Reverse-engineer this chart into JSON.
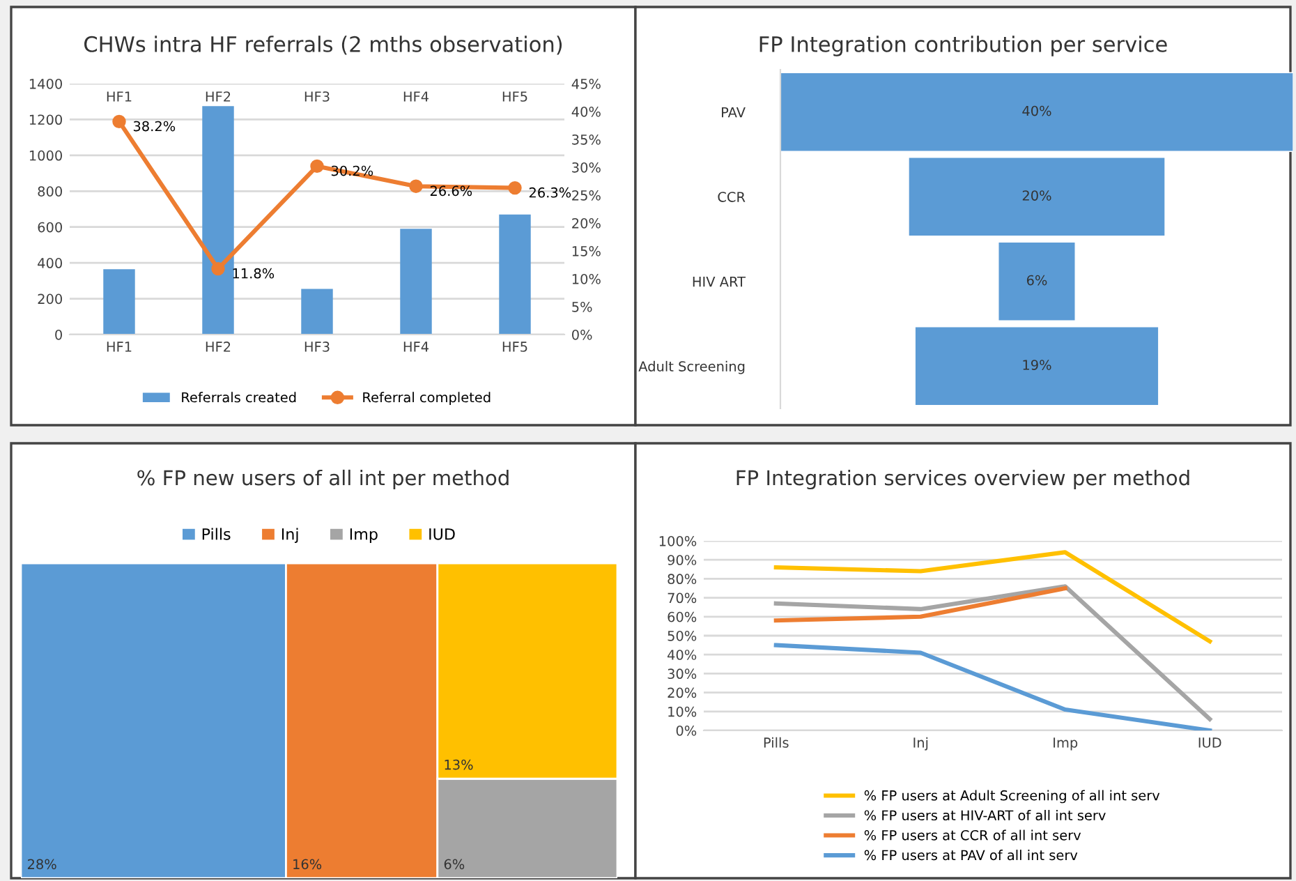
{
  "chart_data": [
    {
      "type": "bar",
      "title": "CHWs intra HF referrals (2 mths observation)",
      "categories": [
        "HF1",
        "HF2",
        "HF3",
        "HF4",
        "HF5"
      ],
      "series": [
        {
          "name": "Referrals created",
          "type": "bar",
          "color": "#5b9bd5",
          "values": [
            365,
            1275,
            255,
            590,
            670
          ]
        },
        {
          "name": "Referral completed",
          "type": "line",
          "axis": "y2",
          "color": "#ed7d31",
          "marker": "circle",
          "values": [
            38.2,
            11.8,
            30.2,
            26.6,
            26.3
          ],
          "value_labels": [
            "38.2%",
            "11.8%",
            "30.2%",
            "26.6%",
            "26.3%"
          ]
        }
      ],
      "annotations": [
        "HF1",
        "HF2",
        "HF3",
        "HF4",
        "HF5"
      ],
      "ylim": [
        0,
        1400
      ],
      "yticks": [
        0,
        200,
        400,
        600,
        800,
        1000,
        1200,
        1400
      ],
      "y2lim": [
        0,
        45
      ],
      "y2ticks": [
        {
          "value": 0,
          "label": "0%"
        },
        {
          "value": 5,
          "label": "5%"
        },
        {
          "value": 10,
          "label": "10%"
        },
        {
          "value": 15,
          "label": "15%"
        },
        {
          "value": 20,
          "label": "20%"
        },
        {
          "value": 25,
          "label": "25%"
        },
        {
          "value": 30,
          "label": "30%"
        },
        {
          "value": 35,
          "label": "35%"
        },
        {
          "value": 40,
          "label": "40%"
        },
        {
          "value": 45,
          "label": "45%"
        }
      ],
      "grid": "y",
      "legend": "bottom"
    },
    {
      "type": "other",
      "title": "FP Integration contribution per service",
      "categories": [
        "PAV",
        "CCR",
        "HIV ART",
        "Adult Screening"
      ],
      "values": [
        40,
        20,
        6,
        19
      ],
      "value_labels": [
        "40%",
        "20%",
        "6%",
        "19%"
      ],
      "color": "#5b9bd5"
    },
    {
      "type": "other",
      "title": "% FP new users of all int per method",
      "categories": [
        "Pills",
        "Inj",
        "Imp",
        "IUD"
      ],
      "values": [
        28,
        16,
        6,
        13
      ],
      "value_labels": [
        "28%",
        "16%",
        "6%",
        "13%"
      ],
      "colors": [
        "#5b9bd5",
        "#ed7d31",
        "#a5a5a5",
        "#ffc000"
      ]
    },
    {
      "type": "line",
      "title": "FP Integration services overview per method",
      "categories": [
        "Pills",
        "Inj",
        "Imp",
        "IUD"
      ],
      "series": [
        {
          "name": "% FP users at Adult Screening of all int serv",
          "color": "#ffc000",
          "values": [
            86,
            84,
            94,
            47
          ]
        },
        {
          "name": "% FP users at HIV-ART of all int serv",
          "color": "#a5a5a5",
          "values": [
            67,
            64,
            76,
            6
          ]
        },
        {
          "name": "% FP users at CCR of all int serv",
          "color": "#ed7d31",
          "values": [
            58,
            60,
            75,
            null
          ]
        },
        {
          "name": "% FP users at PAV of all int serv",
          "color": "#5b9bd5",
          "values": [
            45,
            41,
            11,
            0
          ]
        }
      ],
      "ylim": [
        0,
        100
      ],
      "yticks": [
        {
          "value": 0,
          "label": "0%"
        },
        {
          "value": 10,
          "label": "10%"
        },
        {
          "value": 20,
          "label": "20%"
        },
        {
          "value": 30,
          "label": "30%"
        },
        {
          "value": 40,
          "label": "40%"
        },
        {
          "value": 50,
          "label": "50%"
        },
        {
          "value": 60,
          "label": "60%"
        },
        {
          "value": 70,
          "label": "70%"
        },
        {
          "value": 80,
          "label": "80%"
        },
        {
          "value": 90,
          "label": "90%"
        },
        {
          "value": 100,
          "label": "100%"
        }
      ],
      "grid": "y",
      "legend": "bottom"
    }
  ]
}
